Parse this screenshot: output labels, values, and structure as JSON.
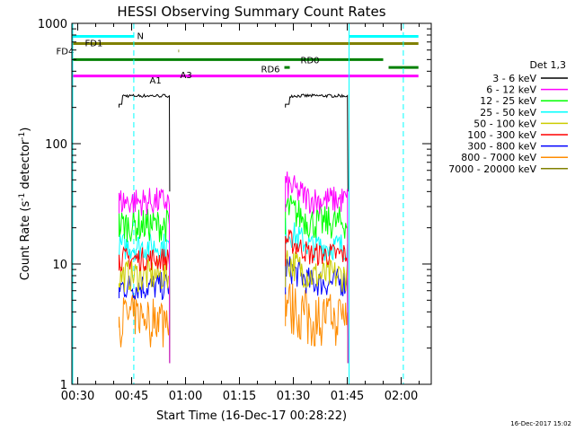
{
  "chart_data": {
    "type": "line",
    "title": "HESSI Observing Summary Count Rates",
    "xlabel": "Start Time (16-Dec-17 00:28:22)",
    "ylabel_main": "Count Rate (s",
    "ylabel_sup1": "-1",
    "ylabel_mid": " detector",
    "ylabel_sup2": "-1",
    "ylabel_end": ")",
    "yscale": "log",
    "ylim": [
      1,
      1000
    ],
    "xlim_minutes": [
      28.37,
      128.37
    ],
    "x_ticks": [
      {
        "m": 30,
        "label": "00:30"
      },
      {
        "m": 45,
        "label": "00:45"
      },
      {
        "m": 60,
        "label": "01:00"
      },
      {
        "m": 75,
        "label": "01:15"
      },
      {
        "m": 90,
        "label": "01:30"
      },
      {
        "m": 105,
        "label": "01:45"
      },
      {
        "m": 120,
        "label": "02:00"
      }
    ],
    "y_ticks": [
      {
        "v": 1,
        "label": "1"
      },
      {
        "v": 10,
        "label": "10"
      },
      {
        "v": 100,
        "label": "100"
      },
      {
        "v": 1000,
        "label": "1000"
      }
    ],
    "legend_title": "Det 1,3",
    "series": [
      {
        "name": "3 - 6 keV",
        "color": "#000000",
        "segments": [
          {
            "start": 41.5,
            "end": 55.6,
            "level": 250,
            "noise": 0.03
          },
          {
            "start": 87.8,
            "end": 105.2,
            "level": 250,
            "noise": 0.03
          }
        ]
      },
      {
        "name": "6 - 12 keV",
        "color": "#ff00ff",
        "segments": [
          {
            "start": 41.5,
            "end": 55.6,
            "level": 33,
            "noise": 0.12
          },
          {
            "start": 87.8,
            "end": 105.2,
            "level": 34,
            "noise": 0.12
          }
        ]
      },
      {
        "name": "12 - 25 keV",
        "color": "#00ff00",
        "segments": [
          {
            "start": 41.5,
            "end": 55.6,
            "level": 21,
            "noise": 0.14
          },
          {
            "start": 87.8,
            "end": 105.2,
            "level": 22,
            "noise": 0.14
          }
        ]
      },
      {
        "name": "25 - 50 keV",
        "color": "#00ffff",
        "segments": [
          {
            "start": 41.5,
            "end": 55.6,
            "level": 14,
            "noise": 0.12
          },
          {
            "start": 87.8,
            "end": 105.2,
            "level": 14,
            "noise": 0.12
          }
        ]
      },
      {
        "name": "50 - 100 keV",
        "color": "#cccc00",
        "segments": [
          {
            "start": 41.5,
            "end": 55.6,
            "level": 8,
            "noise": 0.14
          },
          {
            "start": 87.8,
            "end": 105.2,
            "level": 8,
            "noise": 0.14
          }
        ]
      },
      {
        "name": "100 - 300 keV",
        "color": "#ff0000",
        "segments": [
          {
            "start": 41.5,
            "end": 55.6,
            "level": 11,
            "noise": 0.1
          },
          {
            "start": 87.8,
            "end": 105.2,
            "level": 12,
            "noise": 0.1
          }
        ]
      },
      {
        "name": "300 - 800 keV",
        "color": "#0000ff",
        "segments": [
          {
            "start": 41.5,
            "end": 55.6,
            "level": 6.5,
            "noise": 0.12
          },
          {
            "start": 87.8,
            "end": 105.2,
            "level": 7,
            "noise": 0.12
          }
        ]
      },
      {
        "name": "800 - 7000 keV",
        "color": "#ff8c00",
        "segments": [
          {
            "start": 41.5,
            "end": 55.6,
            "level": 3.7,
            "noise": 0.18
          },
          {
            "start": 87.8,
            "end": 105.2,
            "level": 3.8,
            "noise": 0.18
          }
        ]
      },
      {
        "name": "7000 - 20000 keV",
        "color": "#808000",
        "segments": []
      }
    ],
    "flag_bars": [
      {
        "label": "N",
        "color": "#00ffff",
        "y": 780,
        "segs": [
          [
            28.4,
            45.5
          ],
          [
            105.5,
            124.8
          ]
        ],
        "label_m": 46.5,
        "label_y": 790
      },
      {
        "label": "FD1",
        "color": "#808000",
        "y": 680,
        "segs": [
          [
            28.4,
            124.8
          ]
        ],
        "label_m": 32.0,
        "label_y": 690
      },
      {
        "label": "FD4",
        "color": "#808000",
        "y": 590,
        "segs": [
          [
            58.0,
            58.2
          ]
        ],
        "label_m": 24.0,
        "label_y": 590
      },
      {
        "label": "RD0",
        "color": "#008000",
        "y": 500,
        "segs": [
          [
            28.4,
            102.0
          ],
          [
            102.0,
            115.0
          ]
        ],
        "label_m": 92.0,
        "label_y": 500
      },
      {
        "label": "RD6",
        "color": "#008000",
        "y": 430,
        "segs": [
          [
            87.5,
            89.0
          ],
          [
            116.5,
            124.8
          ]
        ],
        "label_m": 81.0,
        "label_y": 420
      },
      {
        "label": "A1",
        "color": "#ff00ff",
        "y": 365,
        "segs": [
          [
            28.4,
            124.8
          ]
        ],
        "label_m": 50.0,
        "label_y": 340
      },
      {
        "label": "A3",
        "color": "#ff00ff",
        "y": 365,
        "segs": [],
        "label_m": 58.5,
        "label_y": 375
      }
    ],
    "vlines_solid": [
      28.6,
      105.5
    ],
    "vlines_dashed": [
      45.6,
      120.6
    ],
    "vline_color": "#00ffff"
  },
  "footer_timestamp": "16-Dec-2017 15:02"
}
